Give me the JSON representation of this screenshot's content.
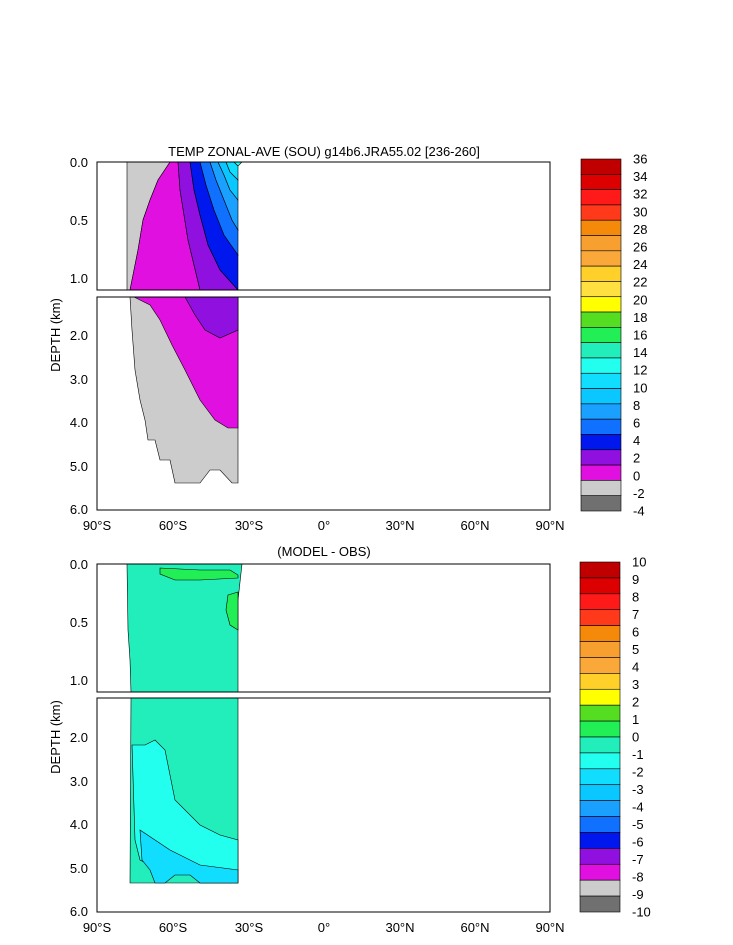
{
  "chart_data": [
    {
      "type": "heatmap",
      "title": "TEMP ZONAL-AVE (SOU) g14b6.JRA55.02 [236-260]",
      "ylabel": "DEPTH (km)",
      "xlabel": "",
      "x_range": [
        -90,
        90
      ],
      "y_range": [
        0,
        6
      ],
      "x_ticks": [
        "90°S",
        "60°S",
        "30°S",
        "0°",
        "30°N",
        "60°N",
        "90°N"
      ],
      "y_ticks_upper": [
        "0.0",
        "0.5",
        "1.0"
      ],
      "y_ticks_lower": [
        "2.0",
        "3.0",
        "4.0",
        "5.0",
        "6.0"
      ],
      "colorbar_labels": [
        "36",
        "34",
        "32",
        "30",
        "28",
        "26",
        "24",
        "22",
        "20",
        "18",
        "16",
        "14",
        "12",
        "10",
        "8",
        "6",
        "4",
        "2",
        "0",
        "-2",
        "-4"
      ],
      "colorbar_colors": [
        "#c00000",
        "#dd0000",
        "#ff1a1a",
        "#ff3a1a",
        "#f58a0a",
        "#f7a030",
        "#faa83a",
        "#ffd02a",
        "#ffe040",
        "#ffff00",
        "#55dd22",
        "#22ee55",
        "#22eebb",
        "#22ffee",
        "#11ddff",
        "#0ac8ff",
        "#1aa0ff",
        "#1070ff",
        "#0018ee",
        "#9010e0",
        "#e010e0",
        "#cccccc",
        "#707070"
      ],
      "data_extent_lat": [
        -78,
        -34
      ],
      "values_approx": {
        "surface_max_temp_near_34S": 14,
        "deep_water_temp": 0,
        "bottom_water_temp": -1
      }
    },
    {
      "type": "heatmap",
      "title": "(MODEL - OBS)",
      "ylabel": "DEPTH (km)",
      "xlabel": "",
      "x_range": [
        -90,
        90
      ],
      "y_range": [
        0,
        6
      ],
      "x_ticks": [
        "90°S",
        "60°S",
        "30°S",
        "0°",
        "30°N",
        "60°N",
        "90°N"
      ],
      "y_ticks_upper": [
        "0.0",
        "0.5",
        "1.0"
      ],
      "y_ticks_lower": [
        "2.0",
        "3.0",
        "4.0",
        "5.0",
        "6.0"
      ],
      "colorbar_labels": [
        "10",
        "9",
        "8",
        "7",
        "6",
        "5",
        "4",
        "3",
        "2",
        "1",
        "0",
        "-1",
        "-2",
        "-3",
        "-4",
        "-5",
        "-6",
        "-7",
        "-8",
        "-9",
        "-10"
      ],
      "colorbar_colors": [
        "#c00000",
        "#dd0000",
        "#ff1a1a",
        "#ff3a1a",
        "#f58a0a",
        "#f7a030",
        "#faa83a",
        "#ffd02a",
        "#ffff00",
        "#55dd22",
        "#22ee55",
        "#22eebb",
        "#22ffee",
        "#11ddff",
        "#0ac8ff",
        "#1aa0ff",
        "#1070ff",
        "#0018ee",
        "#9010e0",
        "#e010e0",
        "#cccccc",
        "#707070"
      ],
      "data_extent_lat": [
        -78,
        -34
      ],
      "values_approx": {
        "dominant_difference": -0.5,
        "deep_difference": -1.5
      }
    }
  ]
}
